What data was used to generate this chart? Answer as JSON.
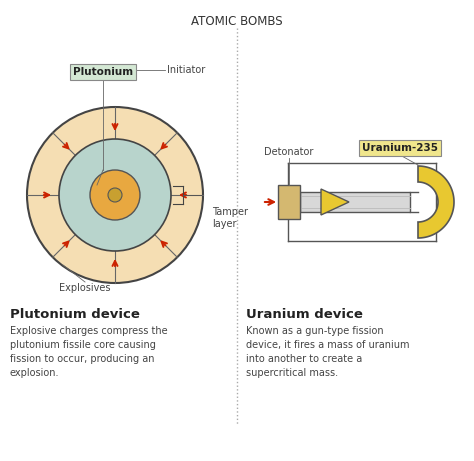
{
  "title": "ATOMIC BOMBS",
  "bg_color": "#ffffff",
  "divider_color": "#aaaaaa",
  "left_label": "Plutonium device",
  "left_desc": "Explosive charges compress the\nplutonium fissile core causing\nfission to occur, producing an\nexplosion.",
  "right_label": "Uranium device",
  "right_desc": "Known as a gun-type fission\ndevice, it fires a mass of uranium\ninto another to create a\nsupercritical mass.",
  "plutonium_box_color": "#d4e8d4",
  "uranium_box_color": "#f0e68c",
  "outer_circle_color": "#f5deb3",
  "tamper_color": "#b8d4cc",
  "core_color": "#e8a840",
  "arrow_color": "#cc2200",
  "gun_barrel_color": "#c8c8c8",
  "gun_body_color": "#e8c830",
  "detonator_color": "#d4b870",
  "initiator_label": "Initiator",
  "detonator_label": "Detonator",
  "plutonium_label": "Plutonium",
  "uranium_label": "Uranium-235",
  "explosives_label": "Explosives",
  "tamper_label": "Tamper\nlayer"
}
